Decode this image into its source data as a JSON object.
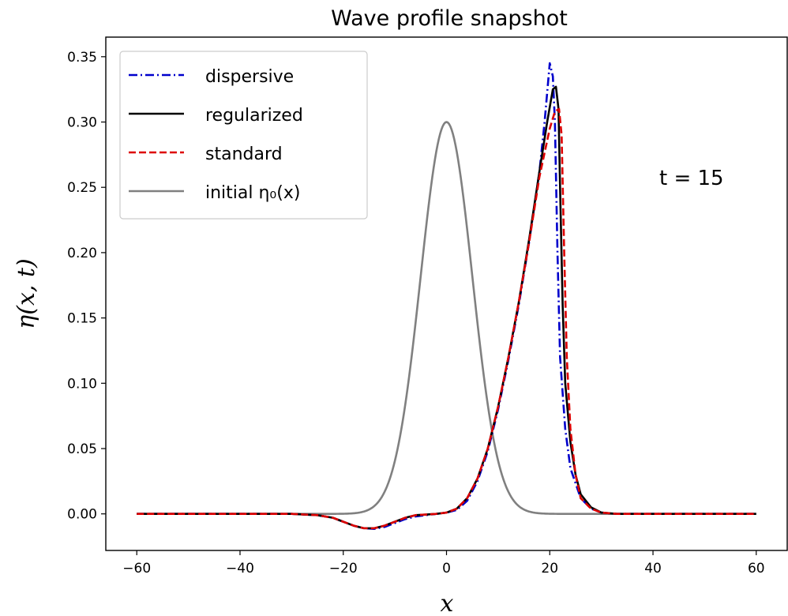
{
  "chart_data": {
    "type": "line",
    "title": "Wave profile snapshot",
    "xlabel": "x",
    "ylabel": "η(x, t)",
    "xlim": [
      -66,
      66
    ],
    "ylim": [
      -0.028,
      0.365
    ],
    "xticks": [
      -60,
      -40,
      -20,
      0,
      20,
      40,
      60
    ],
    "xtick_labels": [
      "−60",
      "−40",
      "−20",
      "0",
      "20",
      "40",
      "60"
    ],
    "yticks": [
      0.0,
      0.05,
      0.1,
      0.15,
      0.2,
      0.25,
      0.3,
      0.35
    ],
    "ytick_labels": [
      "0.00",
      "0.05",
      "0.10",
      "0.15",
      "0.20",
      "0.25",
      "0.30",
      "0.35"
    ],
    "grid": false,
    "legend_position": "top-left",
    "annotation": "t = 15",
    "series": [
      {
        "name": "dispersive",
        "color": "#0000cc",
        "style": "dashdot",
        "points": [
          [
            -60,
            0
          ],
          [
            -30,
            0
          ],
          [
            -25,
            -0.001
          ],
          [
            -22,
            -0.003
          ],
          [
            -20,
            -0.006
          ],
          [
            -18,
            -0.009
          ],
          [
            -16,
            -0.011
          ],
          [
            -14,
            -0.0115
          ],
          [
            -12,
            -0.01
          ],
          [
            -10,
            -0.007
          ],
          [
            -8,
            -0.004
          ],
          [
            -6,
            -0.002
          ],
          [
            -4,
            -0.001
          ],
          [
            -2,
            0
          ],
          [
            0,
            0.001
          ],
          [
            2,
            0.003
          ],
          [
            4,
            0.01
          ],
          [
            6,
            0.025
          ],
          [
            8,
            0.048
          ],
          [
            10,
            0.08
          ],
          [
            12,
            0.118
          ],
          [
            14,
            0.16
          ],
          [
            16,
            0.208
          ],
          [
            18,
            0.262
          ],
          [
            19,
            0.3
          ],
          [
            20,
            0.345
          ],
          [
            20.6,
            0.335
          ],
          [
            21,
            0.3
          ],
          [
            21.5,
            0.2
          ],
          [
            22,
            0.12
          ],
          [
            23,
            0.065
          ],
          [
            24,
            0.035
          ],
          [
            26,
            0.012
          ],
          [
            28,
            0.004
          ],
          [
            30,
            0.001
          ],
          [
            33,
            0
          ],
          [
            60,
            0
          ]
        ]
      },
      {
        "name": "regularized",
        "color": "#000000",
        "style": "solid",
        "points": [
          [
            -60,
            0
          ],
          [
            -30,
            0
          ],
          [
            -25,
            -0.001
          ],
          [
            -22,
            -0.003
          ],
          [
            -20,
            -0.006
          ],
          [
            -18,
            -0.009
          ],
          [
            -16,
            -0.011
          ],
          [
            -14,
            -0.011
          ],
          [
            -12,
            -0.009
          ],
          [
            -10,
            -0.006
          ],
          [
            -8,
            -0.003
          ],
          [
            -6,
            -0.001
          ],
          [
            -4,
            -0.0005
          ],
          [
            -2,
            0
          ],
          [
            0,
            0.001
          ],
          [
            2,
            0.004
          ],
          [
            4,
            0.012
          ],
          [
            6,
            0.027
          ],
          [
            8,
            0.05
          ],
          [
            10,
            0.082
          ],
          [
            12,
            0.12
          ],
          [
            14,
            0.162
          ],
          [
            16,
            0.21
          ],
          [
            18,
            0.262
          ],
          [
            19.5,
            0.3
          ],
          [
            20.6,
            0.325
          ],
          [
            21.2,
            0.327
          ],
          [
            21.7,
            0.31
          ],
          [
            22,
            0.25
          ],
          [
            22.5,
            0.16
          ],
          [
            23,
            0.1
          ],
          [
            24,
            0.055
          ],
          [
            25,
            0.03
          ],
          [
            26,
            0.015
          ],
          [
            28,
            0.005
          ],
          [
            30,
            0.001
          ],
          [
            33,
            0
          ],
          [
            60,
            0
          ]
        ]
      },
      {
        "name": "standard",
        "color": "#dd0000",
        "style": "dashed",
        "points": [
          [
            -60,
            0
          ],
          [
            -30,
            0
          ],
          [
            -25,
            -0.001
          ],
          [
            -22,
            -0.003
          ],
          [
            -20,
            -0.006
          ],
          [
            -18,
            -0.009
          ],
          [
            -16,
            -0.011
          ],
          [
            -14,
            -0.011
          ],
          [
            -12,
            -0.009
          ],
          [
            -10,
            -0.006
          ],
          [
            -8,
            -0.003
          ],
          [
            -6,
            -0.001
          ],
          [
            -4,
            -0.0005
          ],
          [
            -2,
            0
          ],
          [
            0,
            0.001
          ],
          [
            2,
            0.004
          ],
          [
            4,
            0.012
          ],
          [
            6,
            0.027
          ],
          [
            8,
            0.05
          ],
          [
            10,
            0.082
          ],
          [
            12,
            0.12
          ],
          [
            14,
            0.162
          ],
          [
            16,
            0.208
          ],
          [
            18,
            0.258
          ],
          [
            20,
            0.295
          ],
          [
            21,
            0.308
          ],
          [
            21.8,
            0.31
          ],
          [
            22.3,
            0.29
          ],
          [
            22.8,
            0.2
          ],
          [
            23.3,
            0.12
          ],
          [
            24,
            0.065
          ],
          [
            25,
            0.03
          ],
          [
            26,
            0.012
          ],
          [
            28,
            0.004
          ],
          [
            30,
            0.001
          ],
          [
            33,
            0
          ],
          [
            60,
            0
          ]
        ]
      },
      {
        "name": "initial η₀(x)",
        "color": "#808080",
        "style": "solid",
        "function": "gaussian",
        "amplitude": 0.3,
        "center": 0,
        "sigma": 5,
        "x_range": [
          -60,
          60
        ]
      }
    ]
  }
}
